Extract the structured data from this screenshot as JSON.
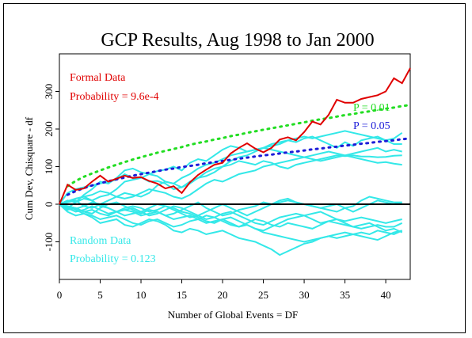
{
  "chart_data": {
    "type": "line",
    "title": "GCP Results, Aug 1998 to Jan 2000",
    "xlabel": "Number of Global Events = DF",
    "ylabel": "Cum Dev, Chisquare - df",
    "xlim": [
      0,
      43
    ],
    "ylim": [
      -200,
      400
    ],
    "xticks": [
      0,
      5,
      10,
      15,
      20,
      25,
      30,
      35,
      40
    ],
    "yticks": [
      -100,
      0,
      100,
      200,
      300
    ],
    "grid": false,
    "annotations": {
      "formal_label": "Formal Data",
      "formal_prob": "Probability = 9.6e-4",
      "random_label": "Random Data",
      "random_prob": "Probability = 0.123",
      "p01_label": "P = 0.01",
      "p05_label": "P = 0.05"
    },
    "colors": {
      "formal": "#e00000",
      "random": "#33e8e8",
      "p01": "#22dd22",
      "p05": "#1c1cd8",
      "zero": "#000000"
    },
    "series": [
      {
        "name": "Formal Data",
        "x": [
          0,
          1,
          2,
          3,
          4,
          5,
          6,
          7,
          8,
          9,
          10,
          11,
          12,
          13,
          14,
          15,
          16,
          17,
          18,
          19,
          20,
          21,
          22,
          23,
          24,
          25,
          26,
          27,
          28,
          29,
          30,
          31,
          32,
          33,
          34,
          35,
          36,
          37,
          38,
          39,
          40,
          41,
          42,
          43
        ],
        "values": [
          0,
          52,
          38,
          42,
          60,
          76,
          60,
          68,
          76,
          70,
          72,
          62,
          55,
          42,
          48,
          30,
          58,
          78,
          92,
          105,
          110,
          135,
          150,
          162,
          148,
          138,
          150,
          172,
          178,
          170,
          192,
          220,
          212,
          238,
          278,
          270,
          270,
          280,
          285,
          290,
          300,
          335,
          322,
          362
        ]
      },
      {
        "name": "P = 0.01",
        "x": [
          1,
          2,
          3,
          4,
          5,
          6,
          7,
          8,
          9,
          10,
          11,
          12,
          13,
          14,
          15,
          16,
          17,
          18,
          19,
          20,
          21,
          22,
          23,
          24,
          25,
          26,
          27,
          28,
          29,
          30,
          31,
          32,
          33,
          34,
          35,
          36,
          37,
          38,
          39,
          40,
          41,
          42,
          43
        ],
        "values": [
          48,
          62,
          73,
          82,
          90,
          98,
          105,
          112,
          119,
          125,
          131,
          137,
          142,
          147,
          152,
          158,
          163,
          167,
          172,
          176,
          181,
          185,
          190,
          194,
          198,
          202,
          206,
          210,
          214,
          218,
          222,
          226,
          229,
          233,
          237,
          240,
          244,
          247,
          251,
          254,
          257,
          261,
          264
        ]
      },
      {
        "name": "P = 0.05",
        "x": [
          1,
          2,
          3,
          4,
          5,
          6,
          7,
          8,
          9,
          10,
          11,
          12,
          13,
          14,
          15,
          16,
          17,
          18,
          19,
          20,
          21,
          22,
          23,
          24,
          25,
          26,
          27,
          28,
          29,
          30,
          31,
          32,
          33,
          34,
          35,
          36,
          37,
          38,
          39,
          40,
          41,
          42,
          43
        ],
        "values": [
          25,
          35,
          43,
          50,
          56,
          61,
          66,
          71,
          76,
          80,
          84,
          88,
          92,
          95,
          99,
          102,
          105,
          109,
          112,
          115,
          118,
          121,
          124,
          127,
          130,
          132,
          135,
          138,
          140,
          143,
          146,
          148,
          151,
          153,
          156,
          158,
          161,
          163,
          166,
          168,
          170,
          173,
          175
        ]
      },
      {
        "name": "Random Data",
        "group": "random",
        "runs": [
          [
            0,
            10,
            5,
            25,
            40,
            60,
            55,
            70,
            90,
            95,
            85,
            80,
            88,
            92,
            100,
            90,
            110,
            120,
            115,
            130,
            145,
            155,
            150,
            140,
            145,
            150,
            155,
            160,
            170,
            165,
            175,
            180,
            170,
            160,
            150,
            165,
            155,
            170,
            175,
            180,
            170,
            175,
            190
          ],
          [
            0,
            30,
            40,
            45,
            50,
            55,
            60,
            65,
            80,
            70,
            72,
            60,
            62,
            55,
            40,
            45,
            60,
            70,
            85,
            95,
            100,
            115,
            125,
            130,
            140,
            150,
            160,
            165,
            170,
            175,
            180,
            175,
            180,
            185,
            190,
            195,
            190,
            185,
            180,
            175,
            170,
            160,
            160
          ],
          [
            0,
            -10,
            5,
            15,
            10,
            20,
            25,
            40,
            60,
            65,
            70,
            80,
            75,
            60,
            55,
            70,
            80,
            95,
            105,
            110,
            120,
            130,
            135,
            140,
            145,
            150,
            145,
            140,
            135,
            130,
            125,
            120,
            115,
            120,
            125,
            130,
            135,
            140,
            145,
            150,
            140,
            145,
            140
          ],
          [
            0,
            5,
            10,
            -5,
            -10,
            0,
            10,
            20,
            30,
            25,
            20,
            30,
            50,
            60,
            55,
            45,
            55,
            70,
            75,
            85,
            100,
            105,
            115,
            110,
            105,
            115,
            110,
            100,
            95,
            105,
            110,
            115,
            120,
            125,
            130,
            128,
            130,
            127,
            127,
            125,
            126,
            129,
            130
          ],
          [
            0,
            -15,
            -10,
            -20,
            -25,
            -10,
            0,
            5,
            -5,
            -15,
            -25,
            -15,
            -20,
            -30,
            -25,
            -15,
            -5,
            5,
            -10,
            -20,
            -30,
            -25,
            -15,
            -10,
            -5,
            5,
            0,
            5,
            10,
            5,
            0,
            -5,
            -10,
            -15,
            -20,
            -10,
            -5,
            10,
            20,
            15,
            10,
            5,
            5
          ],
          [
            0,
            5,
            15,
            20,
            10,
            -5,
            -10,
            -20,
            -30,
            -25,
            -20,
            -10,
            0,
            -5,
            -15,
            -25,
            -35,
            -30,
            -20,
            -10,
            0,
            -10,
            -20,
            -30,
            -20,
            -10,
            0,
            10,
            15,
            5,
            0,
            -5,
            -10,
            -5,
            0,
            -10,
            -20,
            -10,
            0,
            10,
            5,
            0,
            5
          ],
          [
            0,
            -5,
            -15,
            -25,
            -30,
            -40,
            -35,
            -30,
            -40,
            -50,
            -55,
            -45,
            -40,
            -50,
            -60,
            -55,
            -45,
            -40,
            -30,
            -35,
            -45,
            -55,
            -60,
            -50,
            -40,
            -45,
            -55,
            -60,
            -50,
            -55,
            -60,
            -65,
            -55,
            -45,
            -50,
            -55,
            -60,
            -65,
            -60,
            -55,
            -60,
            -60,
            -50
          ],
          [
            0,
            -10,
            -20,
            -15,
            -5,
            -15,
            -25,
            -20,
            -10,
            -5,
            -10,
            -20,
            -15,
            -5,
            -10,
            -20,
            -25,
            -35,
            -45,
            -50,
            -40,
            -35,
            -45,
            -55,
            -65,
            -70,
            -60,
            -50,
            -40,
            -35,
            -30,
            -25,
            -20,
            -30,
            -40,
            -45,
            -40,
            -35,
            -40,
            -45,
            -50,
            -45,
            -40
          ],
          [
            0,
            -20,
            -30,
            -25,
            -35,
            -50,
            -45,
            -40,
            -55,
            -60,
            -50,
            -40,
            -45,
            -55,
            -70,
            -75,
            -65,
            -70,
            -80,
            -75,
            -70,
            -80,
            -90,
            -95,
            -100,
            -110,
            -120,
            -135,
            -125,
            -115,
            -105,
            -100,
            -90,
            -85,
            -80,
            -75,
            -80,
            -85,
            -90,
            -95,
            -85,
            -75,
            -70
          ],
          [
            0,
            -5,
            -10,
            -20,
            -15,
            -25,
            -30,
            -20,
            -15,
            -20,
            -30,
            -25,
            -20,
            -30,
            -40,
            -35,
            -30,
            -40,
            -50,
            -45,
            -40,
            -50,
            -60,
            -55,
            -65,
            -75,
            -80,
            -85,
            -90,
            -95,
            -100,
            -95,
            -90,
            -85,
            -90,
            -85,
            -80,
            -75,
            -80,
            -70,
            -75,
            -80,
            -70
          ],
          [
            0,
            8,
            15,
            20,
            25,
            35,
            30,
            20,
            15,
            20,
            30,
            40,
            35,
            30,
            20,
            15,
            25,
            40,
            55,
            65,
            60,
            70,
            80,
            85,
            90,
            100,
            105,
            110,
            115,
            120,
            125,
            130,
            135,
            140,
            135,
            130,
            125,
            120,
            115,
            110,
            112,
            108,
            105
          ],
          [
            0,
            -8,
            -12,
            -5,
            5,
            0,
            -10,
            -20,
            -15,
            -10,
            -20,
            -30,
            -25,
            -15,
            -5,
            -10,
            -20,
            -30,
            -40,
            -35,
            -25,
            -20,
            -30,
            -40,
            -50,
            -55,
            -45,
            -35,
            -30,
            -25,
            -30,
            -40,
            -50,
            -45,
            -40,
            -50,
            -60,
            -55,
            -50,
            -60,
            -70,
            -65,
            -75
          ]
        ]
      }
    ]
  }
}
